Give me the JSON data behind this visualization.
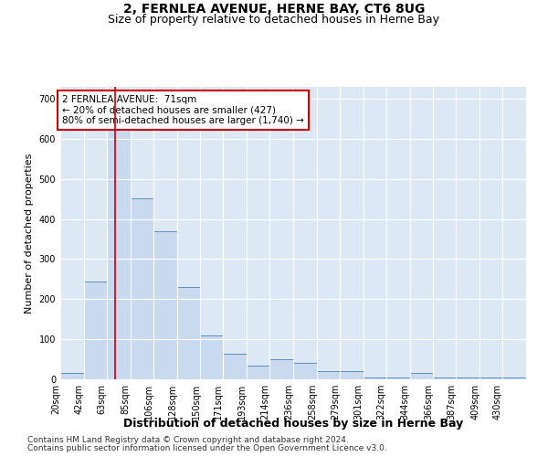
{
  "title": "2, FERNLEA AVENUE, HERNE BAY, CT6 8UG",
  "subtitle": "Size of property relative to detached houses in Herne Bay",
  "xlabel": "Distribution of detached houses by size in Herne Bay",
  "ylabel": "Number of detached properties",
  "footnote1": "Contains HM Land Registry data © Crown copyright and database right 2024.",
  "footnote2": "Contains public sector information licensed under the Open Government Licence v3.0.",
  "bar_edges": [
    20,
    42,
    63,
    85,
    106,
    128,
    150,
    171,
    193,
    214,
    236,
    258,
    279,
    301,
    322,
    344,
    366,
    387,
    409,
    430,
    452
  ],
  "bar_heights": [
    15,
    243,
    660,
    452,
    370,
    230,
    110,
    65,
    35,
    50,
    40,
    20,
    20,
    5,
    5,
    15,
    5,
    5,
    5,
    5,
    0
  ],
  "bar_color": "#c9d9f0",
  "bar_edge_color": "#5b8ec4",
  "property_line_x": 71,
  "property_line_color": "#cc0000",
  "annotation_line1": "2 FERNLEA AVENUE:  71sqm",
  "annotation_line2": "← 20% of detached houses are smaller (427)",
  "annotation_line3": "80% of semi-detached houses are larger (1,740) →",
  "annotation_box_color": "#cc0000",
  "ylim": [
    0,
    730
  ],
  "yticks": [
    0,
    100,
    200,
    300,
    400,
    500,
    600,
    700
  ],
  "bg_color": "#dde8f5",
  "title_fontsize": 10,
  "subtitle_fontsize": 9,
  "ylabel_fontsize": 8,
  "xlabel_fontsize": 9,
  "tick_fontsize": 7,
  "footnote_fontsize": 6.5,
  "annotation_fontsize": 7.5
}
